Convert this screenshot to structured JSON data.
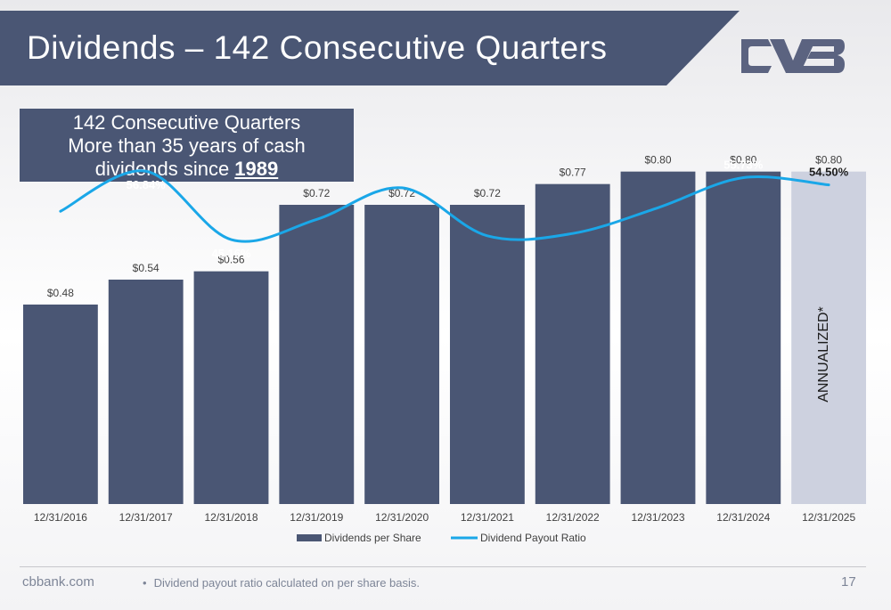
{
  "slide": {
    "title": "Dividends – 142 Consecutive Quarters",
    "logo": "CVB logo",
    "callout": {
      "line1": "142 Consecutive Quarters",
      "line2": "More than 35 years of cash",
      "line3_prefix": "dividends since ",
      "line3_year": "1989"
    },
    "footer": {
      "site": "cbbank.com",
      "bullet": "•",
      "footnote": "Dividend payout ratio calculated on per share basis.",
      "page": "17"
    },
    "colors": {
      "header": "#4a5674",
      "bar": "#4a5674",
      "annualized_bar": "#cdd1df",
      "line": "#1aa7e8"
    }
  },
  "chart_data": {
    "type": "bar",
    "categories": [
      "12/31/2016",
      "12/31/2017",
      "12/31/2018",
      "12/31/2019",
      "12/31/2020",
      "12/31/2021",
      "12/31/2022",
      "12/31/2023",
      "12/31/2024",
      "12/31/2025"
    ],
    "series": [
      {
        "name": "Dividends per Share",
        "type": "bar",
        "values": [
          0.48,
          0.54,
          0.56,
          0.72,
          0.72,
          0.72,
          0.77,
          0.8,
          0.8,
          0.8
        ],
        "labels": [
          "$0.48",
          "$0.54",
          "$0.56",
          "$0.72",
          "$0.72",
          "$0.72",
          "$0.77",
          "$0.80",
          "$0.80",
          "$0.80"
        ]
      },
      {
        "name": "Dividend Payout Ratio",
        "type": "line",
        "values": [
          50.0,
          56.84,
          45.16,
          48.6,
          54.0,
          45.8,
          46.2,
          50.6,
          55.73,
          54.5
        ],
        "labels": [
          "",
          "56.84%",
          "45.16%",
          "",
          "",
          "",
          "",
          "",
          "55.73%",
          "54.50%"
        ]
      }
    ],
    "annotation": "ANNUALIZED*",
    "annualized_index": 9,
    "bar_ylim": [
      0,
      0.93
    ],
    "ratio_ylim": [
      0,
      66
    ],
    "legend_position": "bottom",
    "grid": false
  }
}
